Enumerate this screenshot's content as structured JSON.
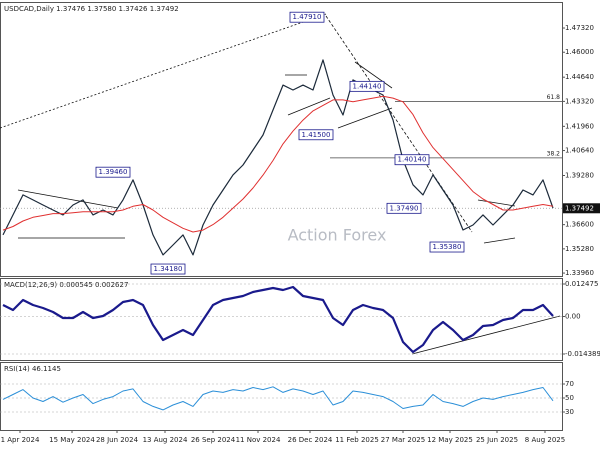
{
  "chart_data": [
    {
      "type": "line",
      "title": "USDCAD,Daily 1.37476 1.37580 1.37426 1.37492",
      "watermark": "Action Forex",
      "xlim": [
        -0.3,
        55.9
      ],
      "ylim": [
        1.338,
        1.4863
      ],
      "yticks": [
        {
          "value": 1.4732,
          "label": "1.47320"
        },
        {
          "value": 1.46,
          "label": "1.46000"
        },
        {
          "value": 1.4464,
          "label": "1.44640"
        },
        {
          "value": 1.4332,
          "label": "1.43320"
        },
        {
          "value": 1.4196,
          "label": "1.41960"
        },
        {
          "value": 1.4064,
          "label": "1.40640"
        },
        {
          "value": 1.3928,
          "label": "1.39280"
        },
        {
          "value": 1.366,
          "label": "1.36600"
        },
        {
          "value": 1.3528,
          "label": "1.35280"
        },
        {
          "value": 1.3396,
          "label": "1.33960"
        }
      ],
      "last_price": {
        "value": 1.37492,
        "label": "1.37492"
      },
      "levels": [
        {
          "value": 1.4332,
          "label": "61.8",
          "from": 39.2
        },
        {
          "value": 1.4024,
          "label": "38.2",
          "from": 32.7
        }
      ],
      "annotations": [
        {
          "value": 1.4791,
          "label": "1.47910",
          "x": 30.4
        },
        {
          "value": 1.3946,
          "label": "1.39460",
          "x": 11.0
        },
        {
          "value": 1.3418,
          "label": "1.34180",
          "x": 16.5
        },
        {
          "value": 1.415,
          "label": "1.41500",
          "x": 31.3
        },
        {
          "value": 1.4414,
          "label": "1.44140",
          "x": 36.4
        },
        {
          "value": 1.4014,
          "label": "1.40140",
          "x": 40.9
        },
        {
          "value": 1.3749,
          "label": "1.37490",
          "x": 40.1
        },
        {
          "value": 1.3538,
          "label": "1.35380",
          "x": 44.4
        }
      ],
      "series": [
        {
          "name": "USDCAD",
          "color": "#1c2a3a",
          "width": 1.2,
          "values": [
            1.3604,
            1.3713,
            1.3822,
            1.3795,
            1.3767,
            1.374,
            1.3713,
            1.3767,
            1.3795,
            1.3713,
            1.374,
            1.3713,
            1.3795,
            1.3904,
            1.3767,
            1.3604,
            1.3495,
            1.3549,
            1.3604,
            1.3495,
            1.3658,
            1.3767,
            1.3849,
            1.3931,
            1.3985,
            1.4067,
            1.4149,
            1.4285,
            1.4421,
            1.4394,
            1.4421,
            1.4394,
            1.4558,
            1.4367,
            1.4258,
            1.4449,
            1.4421,
            1.4394,
            1.4367,
            1.4231,
            1.4013,
            1.3877,
            1.3822,
            1.3931,
            1.3849,
            1.3767,
            1.3631,
            1.3658,
            1.3713,
            1.3658,
            1.3713,
            1.3767,
            1.3849,
            1.3822,
            1.3904,
            1.3751
          ]
        },
        {
          "name": "MA",
          "color": "#e03030",
          "width": 1,
          "values": [
            1.363,
            1.365,
            1.368,
            1.37,
            1.371,
            1.372,
            1.372,
            1.3725,
            1.373,
            1.373,
            1.373,
            1.373,
            1.374,
            1.376,
            1.377,
            1.374,
            1.37,
            1.367,
            1.364,
            1.362,
            1.363,
            1.366,
            1.37,
            1.375,
            1.38,
            1.386,
            1.393,
            1.401,
            1.41,
            1.417,
            1.423,
            1.428,
            1.431,
            1.434,
            1.434,
            1.433,
            1.434,
            1.435,
            1.436,
            1.435,
            1.433,
            1.426,
            1.416,
            1.408,
            1.402,
            1.396,
            1.39,
            1.384,
            1.38,
            1.377,
            1.374,
            1.374,
            1.375,
            1.376,
            1.377,
            1.376
          ]
        }
      ]
    },
    {
      "type": "line",
      "title": "MACD(12,26,9) 0.000545 0.002627",
      "xlim": [
        -0.3,
        55.9
      ],
      "ylim": [
        -0.01669,
        0.01478
      ],
      "yticks": [
        0.012475,
        {
          "value": 0,
          "label": "0.00"
        },
        -0.014389
      ],
      "series": [
        {
          "name": "MACD",
          "color": "#1a1a8c",
          "width": 2.2,
          "values": [
            0.00441,
            0.0025,
            0.00633,
            0.00441,
            0.00326,
            0.00173,
            -0.00058,
            -0.00058,
            0.00173,
            -0.00058,
            0.00019,
            0.0025,
            0.00557,
            0.00633,
            0.00441,
            -0.00326,
            -0.00902,
            -0.0071,
            -0.00518,
            -0.0071,
            -0.00134,
            0.00441,
            0.00633,
            0.0071,
            0.00787,
            0.0094,
            0.01017,
            0.01094,
            0.01017,
            0.01132,
            0.00787,
            0.0071,
            0.00633,
            -0.00058,
            -0.00326,
            0.0025,
            0.00441,
            0.00326,
            0.0025,
            -0.00058,
            -0.00979,
            -0.01362,
            -0.01094,
            -0.00518,
            -0.00211,
            -0.00518,
            -0.00902,
            -0.0071,
            -0.00365,
            -0.00326,
            -0.00134,
            -0.00058,
            0.0025,
            0.0025,
            0.00441,
            0.00019
          ]
        }
      ]
    },
    {
      "type": "line",
      "title": "RSI(14) 46.1145",
      "xlim": [
        -0.3,
        55.9
      ],
      "ylim": [
        4.3,
        101.4
      ],
      "yticks": [
        70,
        50,
        30
      ],
      "xticks": [
        {
          "value": 1.7,
          "label": "1 Apr 2024"
        },
        {
          "value": 6.9,
          "label": "15 May 2024"
        },
        {
          "value": 11.4,
          "label": "28 Jun 2024"
        },
        {
          "value": 16.2,
          "label": "13 Aug 2024"
        },
        {
          "value": 21,
          "label": "26 Sep 2024"
        },
        {
          "value": 25.5,
          "label": "11 Nov 2024"
        },
        {
          "value": 30.7,
          "label": "26 Dec 2024"
        },
        {
          "value": 35.4,
          "label": "11 Feb 2025"
        },
        {
          "value": 40,
          "label": "27 Mar 2025"
        },
        {
          "value": 44.7,
          "label": "12 May 2025"
        },
        {
          "value": 49.4,
          "label": "25 Jun 2025"
        },
        {
          "value": 54.2,
          "label": "8 Aug 2025"
        }
      ],
      "series": [
        {
          "name": "RSI",
          "color": "#2b8fd8",
          "width": 1,
          "values": [
            48,
            55,
            62,
            50,
            45,
            52,
            44,
            50,
            55,
            42,
            48,
            52,
            60,
            63,
            45,
            38,
            33,
            40,
            45,
            38,
            55,
            60,
            58,
            62,
            60,
            65,
            62,
            66,
            58,
            63,
            60,
            55,
            60,
            40,
            45,
            60,
            58,
            55,
            52,
            45,
            35,
            38,
            40,
            55,
            45,
            42,
            38,
            45,
            50,
            48,
            52,
            55,
            58,
            62,
            65,
            46
          ]
        }
      ]
    }
  ]
}
